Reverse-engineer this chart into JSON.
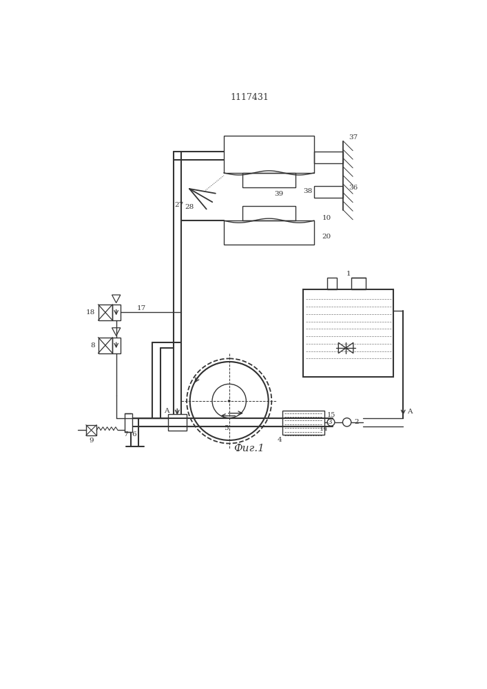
{
  "title": "1117431",
  "fig_label": "Фиг.1",
  "bg": "#ffffff",
  "lc": "#333333",
  "lw": 1.0,
  "lwt": 1.5
}
